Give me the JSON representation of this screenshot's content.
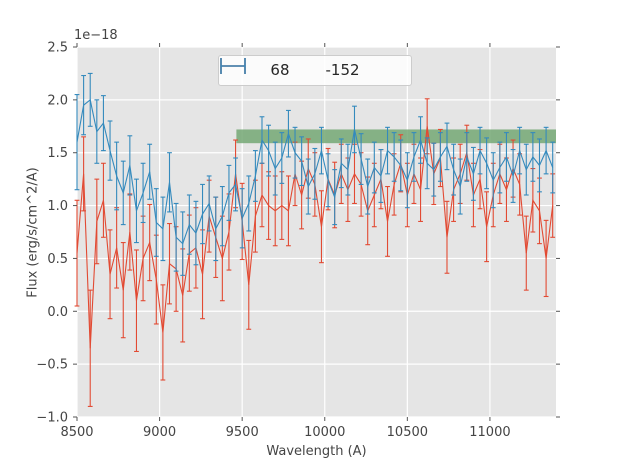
{
  "figure": {
    "offset_text": "1e−18",
    "xlabel": "Wavelength (A)",
    "ylabel": "Flux (erg/s/cm^2/A)"
  },
  "chart_data": {
    "type": "line",
    "subtype": "errorbar",
    "title": "",
    "xlabel": "Wavelength (A)",
    "ylabel": "Flux (erg/s/cm^2/A)",
    "y_offset_factor": "1e−18",
    "xlim": [
      8500,
      11400
    ],
    "ylim": [
      -1.0,
      2.5
    ],
    "x_ticks": [
      8500,
      9000,
      9500,
      10000,
      10500,
      11000
    ],
    "x_tick_labels": [
      "8500",
      "9000",
      "9500",
      "10000",
      "10500",
      "11000"
    ],
    "y_ticks": [
      -1.0,
      -0.5,
      0.0,
      0.5,
      1.0,
      1.5,
      2.0,
      2.5
    ],
    "y_tick_labels": [
      "−1.0",
      "−0.5",
      "0.0",
      "0.5",
      "1.0",
      "1.5",
      "2.0",
      "2.5"
    ],
    "grid": true,
    "background": "#E5E5E5",
    "grid_color": "#FFFFFF",
    "tick_color": "#555555",
    "legend_position": "upper center",
    "band": {
      "type": "axhspan",
      "x0": 9465,
      "x1": 11400,
      "y0": 1.59,
      "y1": 1.72,
      "color": "#74A874",
      "opacity": 0.85
    },
    "x": [
      8500,
      8540,
      8580,
      8620,
      8660,
      8700,
      8740,
      8780,
      8820,
      8860,
      8900,
      8940,
      8980,
      9020,
      9060,
      9100,
      9140,
      9180,
      9220,
      9260,
      9300,
      9340,
      9380,
      9420,
      9460,
      9500,
      9540,
      9580,
      9620,
      9660,
      9700,
      9740,
      9780,
      9820,
      9860,
      9900,
      9940,
      9980,
      10020,
      10060,
      10100,
      10140,
      10180,
      10220,
      10260,
      10300,
      10340,
      10380,
      10420,
      10460,
      10500,
      10540,
      10580,
      10620,
      10660,
      10700,
      10740,
      10780,
      10820,
      10860,
      10900,
      10940,
      10980,
      11020,
      11060,
      11100,
      11140,
      11180,
      11220,
      11260,
      11300,
      11340,
      11380
    ],
    "series": [
      {
        "name": "68",
        "color": "#E24A33",
        "values": [
          0.55,
          1.3,
          -0.35,
          0.85,
          1.05,
          0.35,
          0.6,
          0.2,
          0.75,
          0.1,
          0.5,
          0.65,
          0.3,
          -0.2,
          0.45,
          0.4,
          0.15,
          0.55,
          0.6,
          0.35,
          0.9,
          0.7,
          0.5,
          0.75,
          1.3,
          0.85,
          0.25,
          0.9,
          1.1,
          1.0,
          0.95,
          1.0,
          0.95,
          1.3,
          1.1,
          1.35,
          1.2,
          0.8,
          1.25,
          1.1,
          1.3,
          1.15,
          1.3,
          1.2,
          0.95,
          1.1,
          1.25,
          0.85,
          1.2,
          1.4,
          1.1,
          1.3,
          1.15,
          1.75,
          1.3,
          1.45,
          0.7,
          1.15,
          1.3,
          1.5,
          1.1,
          1.25,
          0.8,
          1.1,
          1.3,
          1.15,
          1.35,
          1.2,
          0.55,
          1.05,
          0.95,
          0.5,
          1.0
        ],
        "errors": [
          0.5,
          0.35,
          0.55,
          0.4,
          0.35,
          0.42,
          0.38,
          0.45,
          0.36,
          0.48,
          0.4,
          0.36,
          0.42,
          0.45,
          0.38,
          0.4,
          0.44,
          0.36,
          0.38,
          0.42,
          0.34,
          0.38,
          0.4,
          0.36,
          0.32,
          0.36,
          0.42,
          0.34,
          0.3,
          0.32,
          0.33,
          0.32,
          0.33,
          0.3,
          0.32,
          0.28,
          0.3,
          0.34,
          0.29,
          0.31,
          0.28,
          0.3,
          0.28,
          0.3,
          0.32,
          0.3,
          0.28,
          0.33,
          0.29,
          0.27,
          0.3,
          0.28,
          0.3,
          0.26,
          0.29,
          0.27,
          0.34,
          0.3,
          0.28,
          0.26,
          0.3,
          0.28,
          0.33,
          0.3,
          0.28,
          0.3,
          0.27,
          0.29,
          0.35,
          0.3,
          0.31,
          0.36,
          0.3
        ]
      },
      {
        "name": "-152",
        "color": "#348ABD",
        "values": [
          1.6,
          1.95,
          2.0,
          1.7,
          1.78,
          1.52,
          1.28,
          1.12,
          1.38,
          0.95,
          1.12,
          1.32,
          0.84,
          0.78,
          1.22,
          0.7,
          0.64,
          0.82,
          0.74,
          0.92,
          1.02,
          0.78,
          0.9,
          1.12,
          1.2,
          0.88,
          1.02,
          1.28,
          1.62,
          1.52,
          1.35,
          1.45,
          1.68,
          1.5,
          1.42,
          1.18,
          1.3,
          1.52,
          1.24,
          1.08,
          1.4,
          1.34,
          1.72,
          1.44,
          1.18,
          1.36,
          1.28,
          1.52,
          1.46,
          1.38,
          1.24,
          1.46,
          1.62,
          1.4,
          1.34,
          1.46,
          1.56,
          1.34,
          1.18,
          1.46,
          1.3,
          1.52,
          1.4,
          1.24,
          1.36,
          1.46,
          1.28,
          1.52,
          1.34,
          1.46,
          1.38,
          1.52,
          1.36
        ],
        "errors": [
          0.45,
          0.28,
          0.25,
          0.3,
          0.26,
          0.28,
          0.32,
          0.3,
          0.28,
          0.3,
          0.28,
          0.26,
          0.32,
          0.3,
          0.28,
          0.32,
          0.3,
          0.28,
          0.3,
          0.28,
          0.26,
          0.3,
          0.28,
          0.26,
          0.25,
          0.28,
          0.26,
          0.24,
          0.22,
          0.24,
          0.25,
          0.24,
          0.22,
          0.24,
          0.23,
          0.26,
          0.24,
          0.22,
          0.25,
          0.26,
          0.23,
          0.24,
          0.22,
          0.24,
          0.26,
          0.24,
          0.25,
          0.22,
          0.23,
          0.24,
          0.26,
          0.23,
          0.22,
          0.24,
          0.25,
          0.23,
          0.22,
          0.24,
          0.26,
          0.23,
          0.25,
          0.22,
          0.24,
          0.26,
          0.24,
          0.23,
          0.25,
          0.22,
          0.24,
          0.23,
          0.25,
          0.22,
          0.24
        ]
      }
    ]
  }
}
